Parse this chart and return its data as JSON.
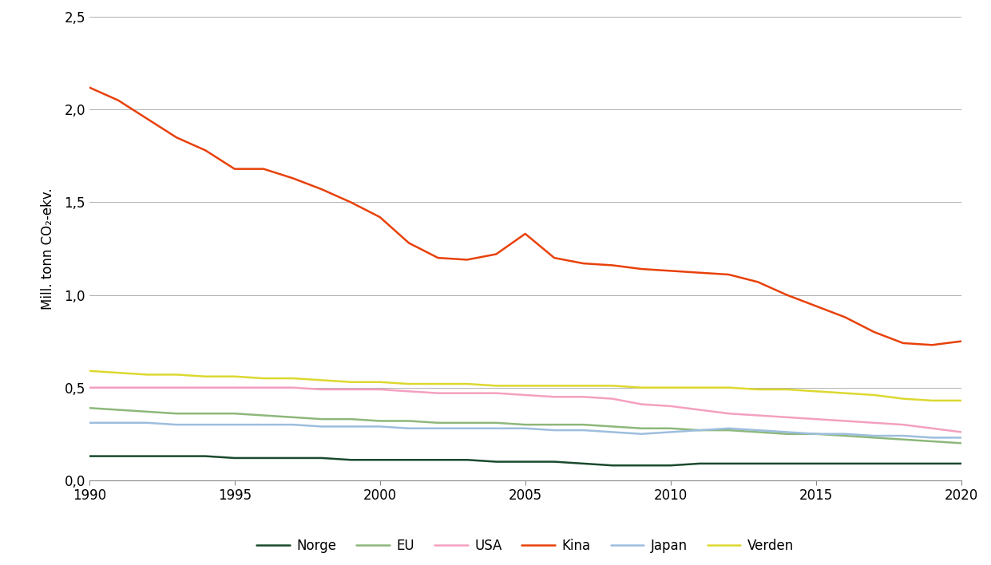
{
  "ylabel": "Mill. tonn CO₂-ekv.",
  "ylim": [
    0.0,
    2.5
  ],
  "yticks": [
    0.0,
    0.5,
    1.0,
    1.5,
    2.0,
    2.5
  ],
  "ytick_labels": [
    "0,0",
    "0,5",
    "1,0",
    "1,5",
    "2,0",
    "2,5"
  ],
  "xlim": [
    1990,
    2020
  ],
  "xticks": [
    1990,
    1995,
    2000,
    2005,
    2010,
    2015,
    2020
  ],
  "background_color": "#ffffff",
  "grid_color": "#b0b0b0",
  "series": {
    "Norge": {
      "color": "#1a4a2e",
      "years": [
        1990,
        1991,
        1992,
        1993,
        1994,
        1995,
        1996,
        1997,
        1998,
        1999,
        2000,
        2001,
        2002,
        2003,
        2004,
        2005,
        2006,
        2007,
        2008,
        2009,
        2010,
        2011,
        2012,
        2013,
        2014,
        2015,
        2016,
        2017,
        2018,
        2019,
        2020
      ],
      "values": [
        0.13,
        0.13,
        0.13,
        0.13,
        0.13,
        0.12,
        0.12,
        0.12,
        0.12,
        0.11,
        0.11,
        0.11,
        0.11,
        0.11,
        0.1,
        0.1,
        0.1,
        0.09,
        0.08,
        0.08,
        0.08,
        0.09,
        0.09,
        0.09,
        0.09,
        0.09,
        0.09,
        0.09,
        0.09,
        0.09,
        0.09
      ]
    },
    "EU": {
      "color": "#8db87a",
      "years": [
        1990,
        1991,
        1992,
        1993,
        1994,
        1995,
        1996,
        1997,
        1998,
        1999,
        2000,
        2001,
        2002,
        2003,
        2004,
        2005,
        2006,
        2007,
        2008,
        2009,
        2010,
        2011,
        2012,
        2013,
        2014,
        2015,
        2016,
        2017,
        2018,
        2019,
        2020
      ],
      "values": [
        0.39,
        0.38,
        0.37,
        0.36,
        0.36,
        0.36,
        0.35,
        0.34,
        0.33,
        0.33,
        0.32,
        0.32,
        0.31,
        0.31,
        0.31,
        0.3,
        0.3,
        0.3,
        0.29,
        0.28,
        0.28,
        0.27,
        0.27,
        0.26,
        0.25,
        0.25,
        0.24,
        0.23,
        0.22,
        0.21,
        0.2
      ]
    },
    "USA": {
      "color": "#f4a0c0",
      "years": [
        1990,
        1991,
        1992,
        1993,
        1994,
        1995,
        1996,
        1997,
        1998,
        1999,
        2000,
        2001,
        2002,
        2003,
        2004,
        2005,
        2006,
        2007,
        2008,
        2009,
        2010,
        2011,
        2012,
        2013,
        2014,
        2015,
        2016,
        2017,
        2018,
        2019,
        2020
      ],
      "values": [
        0.5,
        0.5,
        0.5,
        0.5,
        0.5,
        0.5,
        0.5,
        0.5,
        0.49,
        0.49,
        0.49,
        0.48,
        0.47,
        0.47,
        0.47,
        0.46,
        0.45,
        0.45,
        0.44,
        0.41,
        0.4,
        0.38,
        0.36,
        0.35,
        0.34,
        0.33,
        0.32,
        0.31,
        0.3,
        0.28,
        0.26
      ]
    },
    "Kina": {
      "color": "#e8410a",
      "years": [
        1990,
        1991,
        1992,
        1993,
        1994,
        1995,
        1996,
        1997,
        1998,
        1999,
        2000,
        2001,
        2002,
        2003,
        2004,
        2005,
        2006,
        2007,
        2008,
        2009,
        2010,
        2011,
        2012,
        2013,
        2014,
        2015,
        2016,
        2017,
        2018,
        2019,
        2020
      ],
      "values": [
        2.12,
        2.05,
        1.95,
        1.85,
        1.78,
        1.68,
        1.68,
        1.63,
        1.57,
        1.5,
        1.42,
        1.28,
        1.2,
        1.19,
        1.22,
        1.33,
        1.2,
        1.17,
        1.16,
        1.14,
        1.13,
        1.12,
        1.11,
        1.07,
        1.0,
        0.94,
        0.88,
        0.8,
        0.74,
        0.73,
        0.75
      ]
    },
    "Japan": {
      "color": "#9dbede",
      "years": [
        1990,
        1991,
        1992,
        1993,
        1994,
        1995,
        1996,
        1997,
        1998,
        1999,
        2000,
        2001,
        2002,
        2003,
        2004,
        2005,
        2006,
        2007,
        2008,
        2009,
        2010,
        2011,
        2012,
        2013,
        2014,
        2015,
        2016,
        2017,
        2018,
        2019,
        2020
      ],
      "values": [
        0.31,
        0.31,
        0.31,
        0.3,
        0.3,
        0.3,
        0.3,
        0.3,
        0.29,
        0.29,
        0.29,
        0.28,
        0.28,
        0.28,
        0.28,
        0.28,
        0.27,
        0.27,
        0.26,
        0.25,
        0.26,
        0.27,
        0.28,
        0.27,
        0.26,
        0.25,
        0.25,
        0.24,
        0.24,
        0.23,
        0.23
      ]
    },
    "Verden": {
      "color": "#ddd830",
      "years": [
        1990,
        1991,
        1992,
        1993,
        1994,
        1995,
        1996,
        1997,
        1998,
        1999,
        2000,
        2001,
        2002,
        2003,
        2004,
        2005,
        2006,
        2007,
        2008,
        2009,
        2010,
        2011,
        2012,
        2013,
        2014,
        2015,
        2016,
        2017,
        2018,
        2019,
        2020
      ],
      "values": [
        0.59,
        0.58,
        0.57,
        0.57,
        0.56,
        0.56,
        0.55,
        0.55,
        0.54,
        0.53,
        0.53,
        0.52,
        0.52,
        0.52,
        0.51,
        0.51,
        0.51,
        0.51,
        0.51,
        0.5,
        0.5,
        0.5,
        0.5,
        0.49,
        0.49,
        0.48,
        0.47,
        0.46,
        0.44,
        0.43,
        0.43
      ]
    }
  },
  "legend_order": [
    "Norge",
    "EU",
    "USA",
    "Kina",
    "Japan",
    "Verden"
  ],
  "linewidth": 1.8,
  "figsize": [
    12.41,
    7.08
  ],
  "dpi": 100
}
